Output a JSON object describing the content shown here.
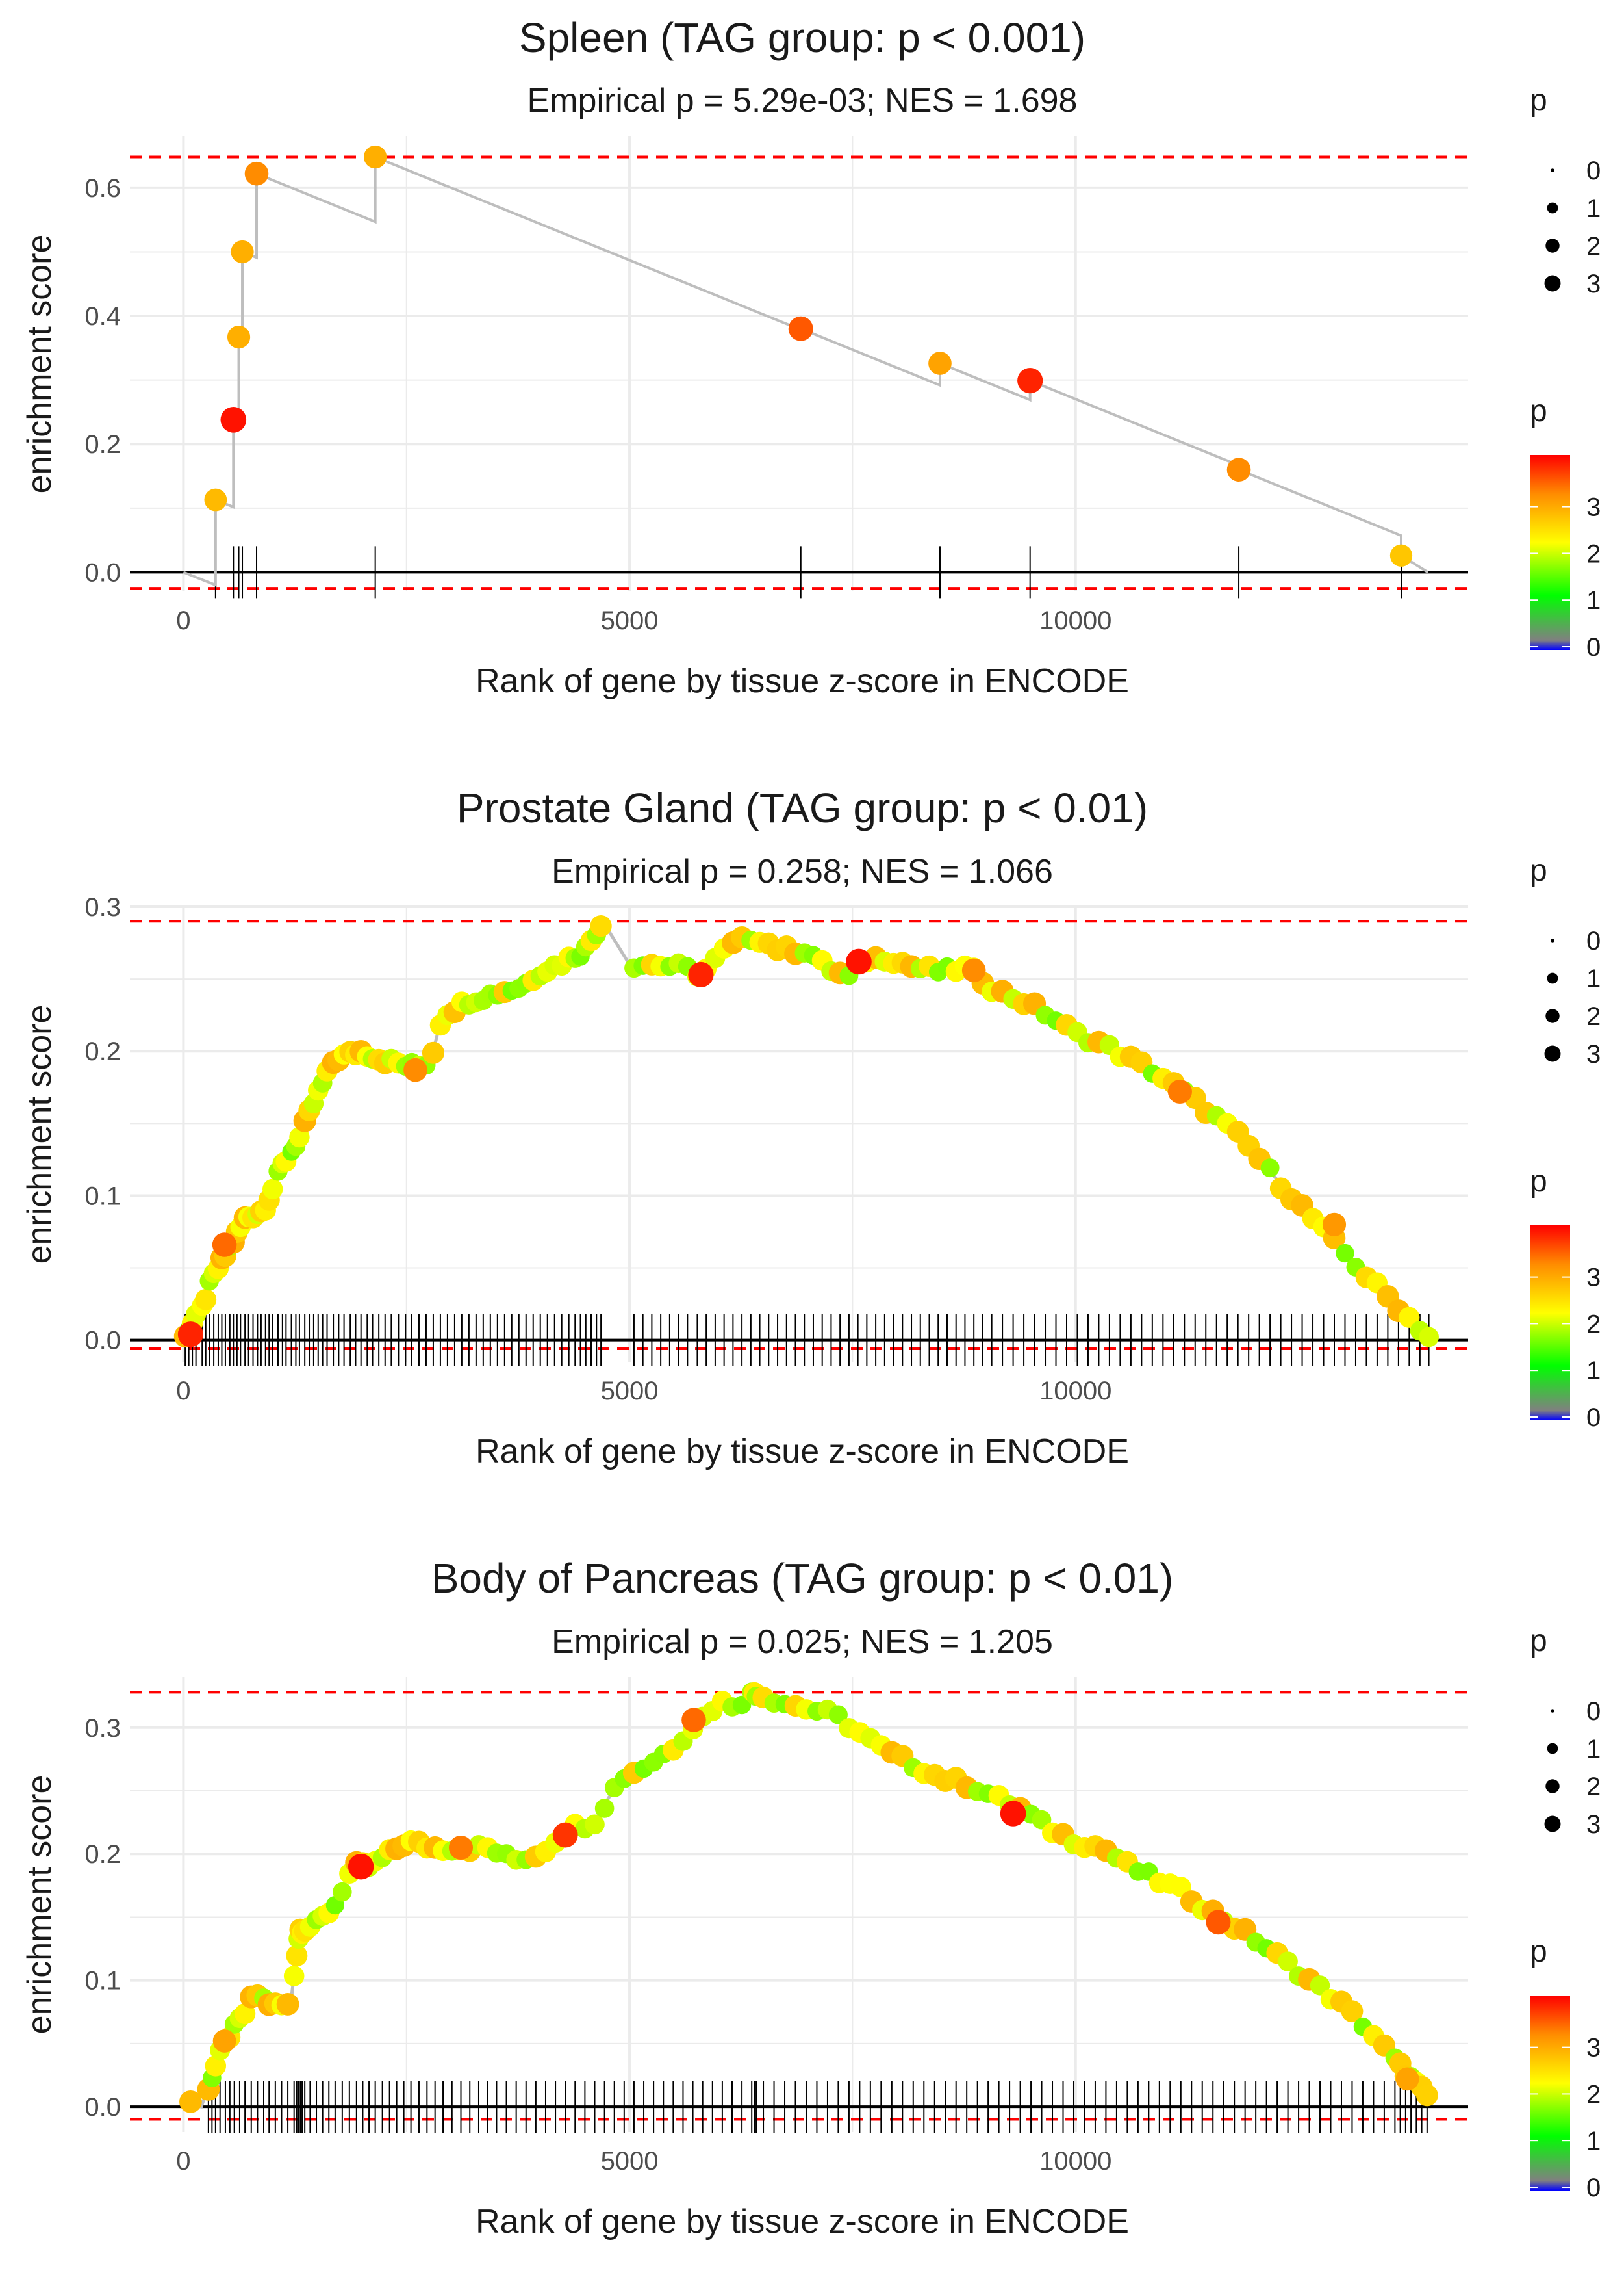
{
  "chart_data": [
    {
      "type": "line",
      "title": "Spleen (TAG group: p < 0.001)",
      "subtitle": "Empirical p = 5.29e-03; NES = 1.698",
      "xlabel": "Rank of gene by tissue z-score in ENCODE",
      "ylabel": "enrichment score",
      "xlim": [
        -600,
        14400
      ],
      "ylim": [
        -0.03,
        0.68
      ],
      "xticks": [
        0,
        5000,
        10000
      ],
      "yticks": [
        0.0,
        0.2,
        0.4,
        0.6
      ],
      "ytick_labels": [
        "0.0",
        "0.2",
        "0.4",
        "0.6"
      ],
      "hlines": [
        0.648,
        -0.025
      ],
      "n_genes": 14000,
      "points": [
        {
          "x": 360,
          "y": 0.113,
          "p": 2.8
        },
        {
          "x": 560,
          "y": 0.238,
          "p": 3.9
        },
        {
          "x": 620,
          "y": 0.367,
          "p": 2.9
        },
        {
          "x": 660,
          "y": 0.5,
          "p": 2.9
        },
        {
          "x": 820,
          "y": 0.622,
          "p": 3.2
        },
        {
          "x": 2150,
          "y": 0.648,
          "p": 2.9
        },
        {
          "x": 6920,
          "y": 0.38,
          "p": 3.5
        },
        {
          "x": 8480,
          "y": 0.326,
          "p": 3.0
        },
        {
          "x": 9490,
          "y": 0.299,
          "p": 3.8
        },
        {
          "x": 11830,
          "y": 0.16,
          "p": 3.2
        },
        {
          "x": 13650,
          "y": 0.026,
          "p": 2.7
        }
      ],
      "rug_x": [
        360,
        560,
        620,
        660,
        820,
        2150,
        6920,
        8480,
        9490,
        11830,
        13650
      ]
    },
    {
      "type": "line",
      "title": "Prostate Gland (TAG group: p < 0.01)",
      "subtitle": "Empirical p = 0.258; NES = 1.066",
      "xlabel": "Rank of gene by tissue z-score in ENCODE",
      "ylabel": "enrichment score",
      "xlim": [
        -600,
        14400
      ],
      "ylim": [
        -0.015,
        0.3
      ],
      "xticks": [
        0,
        5000,
        10000
      ],
      "yticks": [
        0.0,
        0.1,
        0.2,
        0.3
      ],
      "ytick_labels": [
        "0.0",
        "0.1",
        "0.2",
        "0.3"
      ],
      "hlines": [
        0.29,
        -0.006
      ],
      "n_genes": 14000,
      "curve": [
        [
          0,
          0.003
        ],
        [
          200,
          0.02
        ],
        [
          300,
          0.04
        ],
        [
          500,
          0.062
        ],
        [
          700,
          0.085
        ],
        [
          900,
          0.09
        ],
        [
          1100,
          0.12
        ],
        [
          1300,
          0.14
        ],
        [
          1500,
          0.17
        ],
        [
          1700,
          0.195
        ],
        [
          2000,
          0.2
        ],
        [
          2200,
          0.195
        ],
        [
          2500,
          0.19
        ],
        [
          2700,
          0.19
        ],
        [
          2800,
          0.2
        ],
        [
          2900,
          0.225
        ],
        [
          3200,
          0.235
        ],
        [
          3500,
          0.24
        ],
        [
          3800,
          0.245
        ],
        [
          4000,
          0.255
        ],
        [
          4200,
          0.26
        ],
        [
          4500,
          0.27
        ],
        [
          4700,
          0.29
        ],
        [
          5000,
          0.26
        ],
        [
          5300,
          0.26
        ],
        [
          5600,
          0.258
        ],
        [
          5800,
          0.253
        ],
        [
          6100,
          0.272
        ],
        [
          6400,
          0.28
        ],
        [
          6700,
          0.27
        ],
        [
          7000,
          0.27
        ],
        [
          7200,
          0.258
        ],
        [
          7500,
          0.25
        ],
        [
          7600,
          0.263
        ],
        [
          7900,
          0.265
        ],
        [
          8200,
          0.258
        ],
        [
          8500,
          0.255
        ],
        [
          8800,
          0.258
        ],
        [
          9100,
          0.242
        ],
        [
          9400,
          0.235
        ],
        [
          9700,
          0.225
        ],
        [
          10000,
          0.212
        ],
        [
          10300,
          0.205
        ],
        [
          10600,
          0.195
        ],
        [
          10900,
          0.185
        ],
        [
          11200,
          0.172
        ],
        [
          11500,
          0.158
        ],
        [
          11800,
          0.143
        ],
        [
          12000,
          0.13
        ],
        [
          12300,
          0.108
        ],
        [
          12600,
          0.088
        ],
        [
          12900,
          0.068
        ],
        [
          13200,
          0.048
        ],
        [
          13500,
          0.03
        ],
        [
          13800,
          0.012
        ],
        [
          14000,
          0.0
        ]
      ],
      "highlights": [
        {
          "x": 80,
          "y": 0.004,
          "p": 3.8
        },
        {
          "x": 460,
          "y": 0.066,
          "p": 3.4
        },
        {
          "x": 2600,
          "y": 0.187,
          "p": 3.2
        },
        {
          "x": 5800,
          "y": 0.253,
          "p": 3.8
        },
        {
          "x": 7570,
          "y": 0.262,
          "p": 3.9
        },
        {
          "x": 8860,
          "y": 0.256,
          "p": 3.2
        },
        {
          "x": 11170,
          "y": 0.172,
          "p": 3.3
        },
        {
          "x": 12900,
          "y": 0.08,
          "p": 3.1
        }
      ],
      "rug_x": [
        20,
        60,
        100,
        140,
        210,
        250,
        290,
        340,
        390,
        430,
        470,
        520,
        560,
        600,
        640,
        690,
        730,
        780,
        830,
        870,
        920,
        960,
        1000,
        1060,
        1110,
        1150,
        1210,
        1260,
        1300,
        1360,
        1410,
        1460,
        1510,
        1560,
        1610,
        1680,
        1740,
        1800,
        1870,
        1930,
        1990,
        2060,
        2120,
        2190,
        2260,
        2330,
        2410,
        2490,
        2560,
        2640,
        2720,
        2800,
        2880,
        2960,
        3040,
        3120,
        3200,
        3280,
        3360,
        3440,
        3520,
        3600,
        3680,
        3760,
        3840,
        3920,
        4000,
        4080,
        4160,
        4240,
        4320,
        4390,
        4450,
        4510,
        4570,
        4630,
        4680,
        5050,
        5150,
        5250,
        5350,
        5450,
        5550,
        5650,
        5760,
        5860,
        5960,
        6060,
        6160,
        6260,
        6360,
        6460,
        6560,
        6660,
        6760,
        6860,
        6960,
        7060,
        7160,
        7260,
        7360,
        7460,
        7560,
        7660,
        7760,
        7860,
        7960,
        8060,
        8160,
        8260,
        8360,
        8460,
        8560,
        8660,
        8760,
        8860,
        8960,
        9060,
        9180,
        9300,
        9420,
        9540,
        9660,
        9780,
        9900,
        10020,
        10140,
        10260,
        10380,
        10500,
        10620,
        10740,
        10860,
        10980,
        11100,
        11220,
        11340,
        11460,
        11580,
        11700,
        11820,
        11940,
        12060,
        12180,
        12300,
        12420,
        12540,
        12660,
        12780,
        12900,
        13020,
        13140,
        13260,
        13380,
        13500,
        13620,
        13740,
        13860,
        13960
      ]
    },
    {
      "type": "line",
      "title": "Body of Pancreas (TAG group: p < 0.01)",
      "subtitle": "Empirical p = 0.025; NES = 1.205",
      "xlabel": "Rank of gene by tissue z-score in ENCODE",
      "ylabel": "enrichment score",
      "xlim": [
        -600,
        14400
      ],
      "ylim": [
        -0.02,
        0.34
      ],
      "xticks": [
        0,
        5000,
        10000
      ],
      "yticks": [
        0.0,
        0.1,
        0.2,
        0.3
      ],
      "ytick_labels": [
        "0.0",
        "0.1",
        "0.2",
        "0.3"
      ],
      "hlines": [
        0.328,
        -0.01
      ],
      "n_genes": 14000,
      "curve": [
        [
          0,
          0.003
        ],
        [
          200,
          0.0
        ],
        [
          300,
          0.02
        ],
        [
          400,
          0.04
        ],
        [
          500,
          0.055
        ],
        [
          700,
          0.075
        ],
        [
          800,
          0.09
        ],
        [
          1000,
          0.08
        ],
        [
          1200,
          0.08
        ],
        [
          1300,
          0.14
        ],
        [
          1500,
          0.145
        ],
        [
          1700,
          0.16
        ],
        [
          1900,
          0.19
        ],
        [
          2100,
          0.19
        ],
        [
          2300,
          0.2
        ],
        [
          2500,
          0.21
        ],
        [
          2800,
          0.205
        ],
        [
          3100,
          0.205
        ],
        [
          3400,
          0.205
        ],
        [
          3700,
          0.195
        ],
        [
          4000,
          0.2
        ],
        [
          4300,
          0.22
        ],
        [
          4600,
          0.225
        ],
        [
          4900,
          0.26
        ],
        [
          5200,
          0.27
        ],
        [
          5500,
          0.285
        ],
        [
          5700,
          0.3
        ],
        [
          6000,
          0.32
        ],
        [
          6200,
          0.318
        ],
        [
          6400,
          0.328
        ],
        [
          6700,
          0.32
        ],
        [
          7000,
          0.315
        ],
        [
          7300,
          0.31
        ],
        [
          7600,
          0.295
        ],
        [
          7900,
          0.28
        ],
        [
          8200,
          0.27
        ],
        [
          8500,
          0.26
        ],
        [
          8800,
          0.255
        ],
        [
          9100,
          0.245
        ],
        [
          9400,
          0.235
        ],
        [
          9700,
          0.22
        ],
        [
          10000,
          0.21
        ],
        [
          10300,
          0.205
        ],
        [
          10600,
          0.19
        ],
        [
          10900,
          0.18
        ],
        [
          11200,
          0.17
        ],
        [
          11500,
          0.155
        ],
        [
          11800,
          0.142
        ],
        [
          12100,
          0.128
        ],
        [
          12400,
          0.112
        ],
        [
          12700,
          0.096
        ],
        [
          13000,
          0.08
        ],
        [
          13300,
          0.06
        ],
        [
          13600,
          0.035
        ],
        [
          13850,
          0.015
        ],
        [
          14000,
          0.004
        ]
      ],
      "highlights": [
        {
          "x": 80,
          "y": 0.004,
          "p": 2.8
        },
        {
          "x": 460,
          "y": 0.052,
          "p": 3.0
        },
        {
          "x": 1990,
          "y": 0.19,
          "p": 3.9
        },
        {
          "x": 3110,
          "y": 0.205,
          "p": 3.3
        },
        {
          "x": 4280,
          "y": 0.215,
          "p": 3.7
        },
        {
          "x": 5720,
          "y": 0.306,
          "p": 3.4
        },
        {
          "x": 9300,
          "y": 0.232,
          "p": 3.9
        },
        {
          "x": 11600,
          "y": 0.146,
          "p": 3.5
        },
        {
          "x": 13720,
          "y": 0.022,
          "p": 3.0
        }
      ],
      "rug_x": [
        280,
        320,
        360,
        410,
        470,
        520,
        570,
        630,
        690,
        760,
        830,
        900,
        960,
        1030,
        1100,
        1170,
        1240,
        1270,
        1290,
        1310,
        1330,
        1360,
        1420,
        1490,
        1560,
        1630,
        1700,
        1780,
        1860,
        1940,
        2010,
        2080,
        2150,
        2230,
        2310,
        2390,
        2470,
        2550,
        2640,
        2730,
        2820,
        2910,
        3010,
        3110,
        3210,
        3310,
        3410,
        3510,
        3620,
        3730,
        3840,
        3950,
        4060,
        4170,
        4280,
        4390,
        4500,
        4610,
        4720,
        4830,
        4940,
        5050,
        5160,
        5270,
        5380,
        5490,
        5600,
        5710,
        5820,
        5930,
        6040,
        6150,
        6260,
        6370,
        6400,
        6420,
        6500,
        6620,
        6740,
        6860,
        6980,
        7100,
        7220,
        7340,
        7460,
        7580,
        7700,
        7820,
        7940,
        8060,
        8180,
        8300,
        8420,
        8540,
        8660,
        8780,
        8900,
        9020,
        9140,
        9260,
        9380,
        9500,
        9620,
        9740,
        9860,
        9980,
        10100,
        10220,
        10340,
        10460,
        10580,
        10700,
        10820,
        10940,
        11060,
        11180,
        11300,
        11420,
        11540,
        11660,
        11780,
        11900,
        12020,
        12140,
        12260,
        12380,
        12500,
        12620,
        12740,
        12860,
        12980,
        13100,
        13220,
        13340,
        13460,
        13580,
        13640,
        13700,
        13760,
        13820,
        13880,
        13940
      ]
    }
  ],
  "legend": {
    "size_title": "p",
    "size_labels": [
      "0",
      "1",
      "2",
      "3"
    ],
    "color_title": "p",
    "color_labels": [
      "3",
      "2",
      "1",
      "0"
    ],
    "gradient_colors": [
      "#ff0000",
      "#ff8c00",
      "#ffff00",
      "#00ff00",
      "#808080",
      "#0000ff"
    ]
  },
  "colors": {
    "grid": "#ebebeb",
    "hline": "#ff0000",
    "curve": "#bebebe",
    "rug": "#000000"
  }
}
